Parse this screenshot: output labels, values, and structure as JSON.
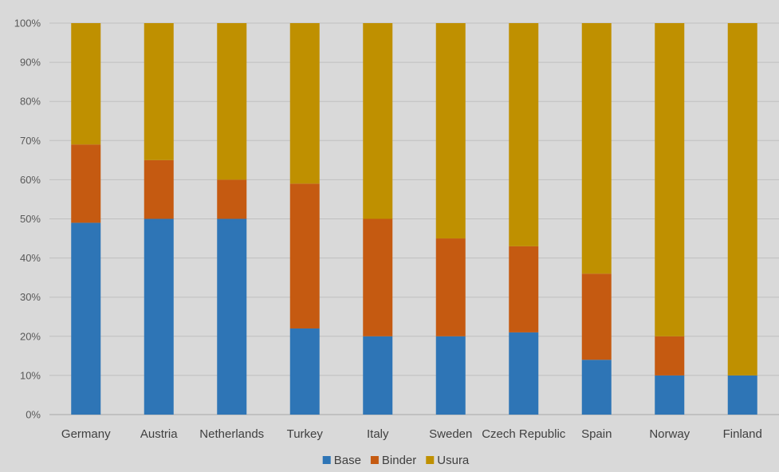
{
  "chart_data": {
    "type": "bar",
    "stacked": true,
    "percent_stacked": true,
    "categories": [
      "Germany",
      "Austria",
      "Netherlands",
      "Turkey",
      "Italy",
      "Sweden",
      "Czech Republic",
      "Spain",
      "Norway",
      "Finland"
    ],
    "series": [
      {
        "name": "Base",
        "values": [
          49,
          50,
          50,
          22,
          20,
          20,
          21,
          14,
          10,
          10
        ],
        "color": "#2e75b6"
      },
      {
        "name": "Binder",
        "values": [
          20,
          15,
          10,
          37,
          30,
          25,
          22,
          22,
          10,
          0
        ],
        "color": "#c55a11"
      },
      {
        "name": "Usura",
        "values": [
          31,
          35,
          40,
          41,
          50,
          55,
          57,
          64,
          80,
          90
        ],
        "color": "#bf9000"
      }
    ],
    "ylim": [
      0,
      100
    ],
    "yticks": [
      "0%",
      "10%",
      "20%",
      "30%",
      "40%",
      "50%",
      "60%",
      "70%",
      "80%",
      "90%",
      "100%"
    ],
    "grid": true,
    "legend_position": "bottom",
    "title": "",
    "xlabel": "",
    "ylabel": ""
  }
}
